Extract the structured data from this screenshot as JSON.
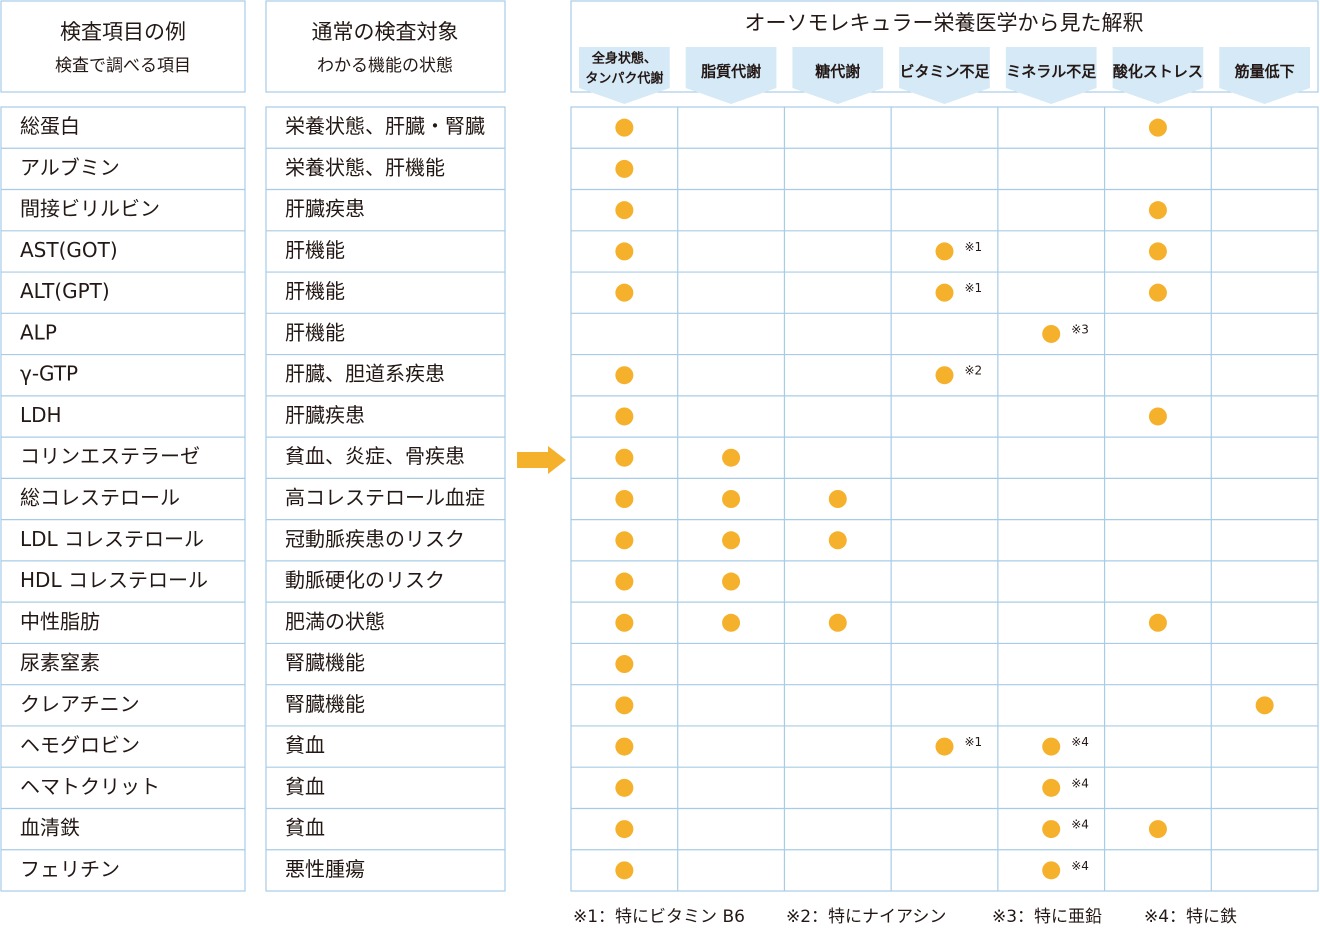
{
  "left_header": {
    "title": "検査項目の例",
    "subtitle": "検査で調べる項目"
  },
  "middle_header": {
    "title": "通常の検査対象",
    "subtitle": "わかる機能の状態"
  },
  "grid_header": {
    "title": "オーソモレキュラー栄養医学から見た解釈",
    "columns": [
      [
        "全身状態、",
        "タンパク代謝"
      ],
      [
        "脂質代謝"
      ],
      [
        "糖代謝"
      ],
      [
        "ビタミン不足"
      ],
      [
        "ミネラル不足"
      ],
      [
        "酸化ストレス"
      ],
      [
        "筋量低下"
      ]
    ]
  },
  "rows": [
    {
      "item": "総蛋白",
      "target": "栄養状態、肝臓・腎臓",
      "cells": [
        {
          "dot": true
        },
        null,
        null,
        null,
        null,
        {
          "dot": true
        },
        null
      ]
    },
    {
      "item": "アルブミン",
      "target": "栄養状態、肝機能",
      "cells": [
        {
          "dot": true
        },
        null,
        null,
        null,
        null,
        null,
        null
      ]
    },
    {
      "item": "間接ビリルビン",
      "target": "肝臓疾患",
      "cells": [
        {
          "dot": true
        },
        null,
        null,
        null,
        null,
        {
          "dot": true
        },
        null
      ]
    },
    {
      "item": "AST(GOT)",
      "target": "肝機能",
      "cells": [
        {
          "dot": true
        },
        null,
        null,
        {
          "dot": true,
          "note": "※1"
        },
        null,
        {
          "dot": true
        },
        null
      ]
    },
    {
      "item": "ALT(GPT)",
      "target": "肝機能",
      "cells": [
        {
          "dot": true
        },
        null,
        null,
        {
          "dot": true,
          "note": "※1"
        },
        null,
        {
          "dot": true
        },
        null
      ]
    },
    {
      "item": "ALP",
      "target": "肝機能",
      "cells": [
        null,
        null,
        null,
        null,
        {
          "dot": true,
          "note": "※3"
        },
        null,
        null
      ]
    },
    {
      "item": "γ-GTP",
      "target": "肝臓、胆道系疾患",
      "cells": [
        {
          "dot": true
        },
        null,
        null,
        {
          "dot": true,
          "note": "※2"
        },
        null,
        null,
        null
      ]
    },
    {
      "item": "LDH",
      "target": "肝臓疾患",
      "cells": [
        {
          "dot": true
        },
        null,
        null,
        null,
        null,
        {
          "dot": true
        },
        null
      ]
    },
    {
      "item": "コリンエステラーゼ",
      "target": "貧血、炎症、骨疾患",
      "cells": [
        {
          "dot": true
        },
        {
          "dot": true
        },
        null,
        null,
        null,
        null,
        null
      ]
    },
    {
      "item": "総コレステロール",
      "target": "高コレステロール血症",
      "cells": [
        {
          "dot": true
        },
        {
          "dot": true
        },
        {
          "dot": true
        },
        null,
        null,
        null,
        null
      ]
    },
    {
      "item": "LDL コレステロール",
      "target": "冠動脈疾患のリスク",
      "cells": [
        {
          "dot": true
        },
        {
          "dot": true
        },
        {
          "dot": true
        },
        null,
        null,
        null,
        null
      ]
    },
    {
      "item": "HDL コレステロール",
      "target": "動脈硬化のリスク",
      "cells": [
        {
          "dot": true
        },
        {
          "dot": true
        },
        null,
        null,
        null,
        null,
        null
      ]
    },
    {
      "item": "中性脂肪",
      "target": "肥満の状態",
      "cells": [
        {
          "dot": true
        },
        {
          "dot": true
        },
        {
          "dot": true
        },
        null,
        null,
        {
          "dot": true
        },
        null
      ]
    },
    {
      "item": "尿素窒素",
      "target": "腎臓機能",
      "cells": [
        {
          "dot": true
        },
        null,
        null,
        null,
        null,
        null,
        null
      ]
    },
    {
      "item": "クレアチニン",
      "target": "腎臓機能",
      "cells": [
        {
          "dot": true
        },
        null,
        null,
        null,
        null,
        null,
        {
          "dot": true
        }
      ]
    },
    {
      "item": "ヘモグロビン",
      "target": "貧血",
      "cells": [
        {
          "dot": true
        },
        null,
        null,
        {
          "dot": true,
          "note": "※1"
        },
        {
          "dot": true,
          "note": "※4"
        },
        null,
        null
      ]
    },
    {
      "item": "ヘマトクリット",
      "target": "貧血",
      "cells": [
        {
          "dot": true
        },
        null,
        null,
        null,
        {
          "dot": true,
          "note": "※4"
        },
        null,
        null
      ]
    },
    {
      "item": "血清鉄",
      "target": "貧血",
      "cells": [
        {
          "dot": true
        },
        null,
        null,
        null,
        {
          "dot": true,
          "note": "※4"
        },
        {
          "dot": true
        },
        null
      ]
    },
    {
      "item": "フェリチン",
      "target": "悪性腫瘍",
      "cells": [
        {
          "dot": true
        },
        null,
        null,
        null,
        {
          "dot": true,
          "note": "※4"
        },
        null,
        null
      ]
    }
  ],
  "footnotes": [
    "※1：特にビタミン B6",
    "※2：特にナイアシン",
    "※3：特に亜鉛",
    "※4：特に鉄"
  ]
}
